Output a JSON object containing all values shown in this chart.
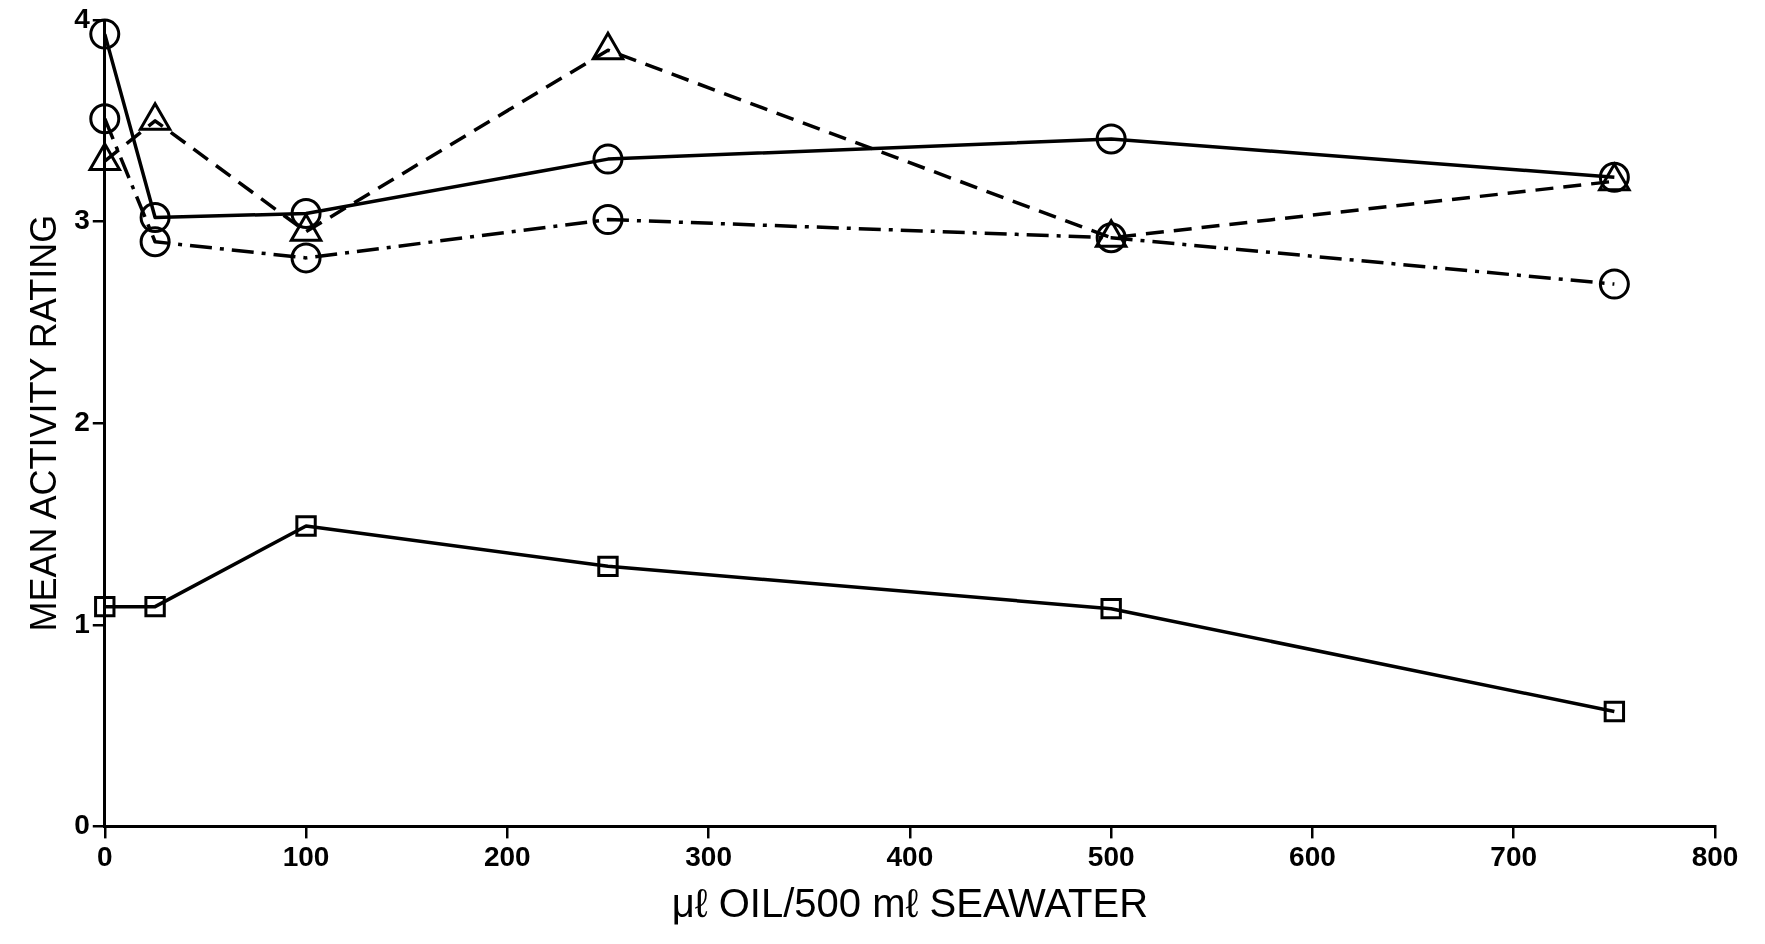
{
  "chart_data": {
    "type": "line",
    "xlabel": "μℓ OIL/500 mℓ SEAWATER",
    "ylabel": "MEAN ACTIVITY RATING",
    "x": [
      0,
      25,
      100,
      250,
      500,
      750
    ],
    "xlim": [
      0,
      800
    ],
    "xticks": [
      0,
      100,
      200,
      300,
      400,
      500,
      600,
      700,
      800
    ],
    "ylim": [
      0,
      4
    ],
    "yticks": [
      0,
      1,
      2,
      3,
      4
    ],
    "grid": false,
    "legend": false,
    "series": [
      {
        "color": "#000000",
        "marker": "circle",
        "line_style": "solid",
        "values": [
          3.93,
          3.02,
          3.04,
          3.31,
          3.41,
          3.22
        ]
      },
      {
        "color": "#000000",
        "marker": "circle",
        "line_style": "dashdot",
        "values": [
          3.51,
          2.9,
          2.82,
          3.01,
          2.92,
          2.69
        ]
      },
      {
        "color": "#000000",
        "marker": "triangle",
        "line_style": "dashed",
        "values": [
          3.3,
          3.5,
          2.95,
          3.85,
          2.92,
          3.2
        ]
      },
      {
        "color": "#000000",
        "marker": "square",
        "line_style": "solid",
        "values": [
          1.09,
          1.09,
          1.49,
          1.29,
          1.08,
          0.57
        ]
      }
    ]
  }
}
